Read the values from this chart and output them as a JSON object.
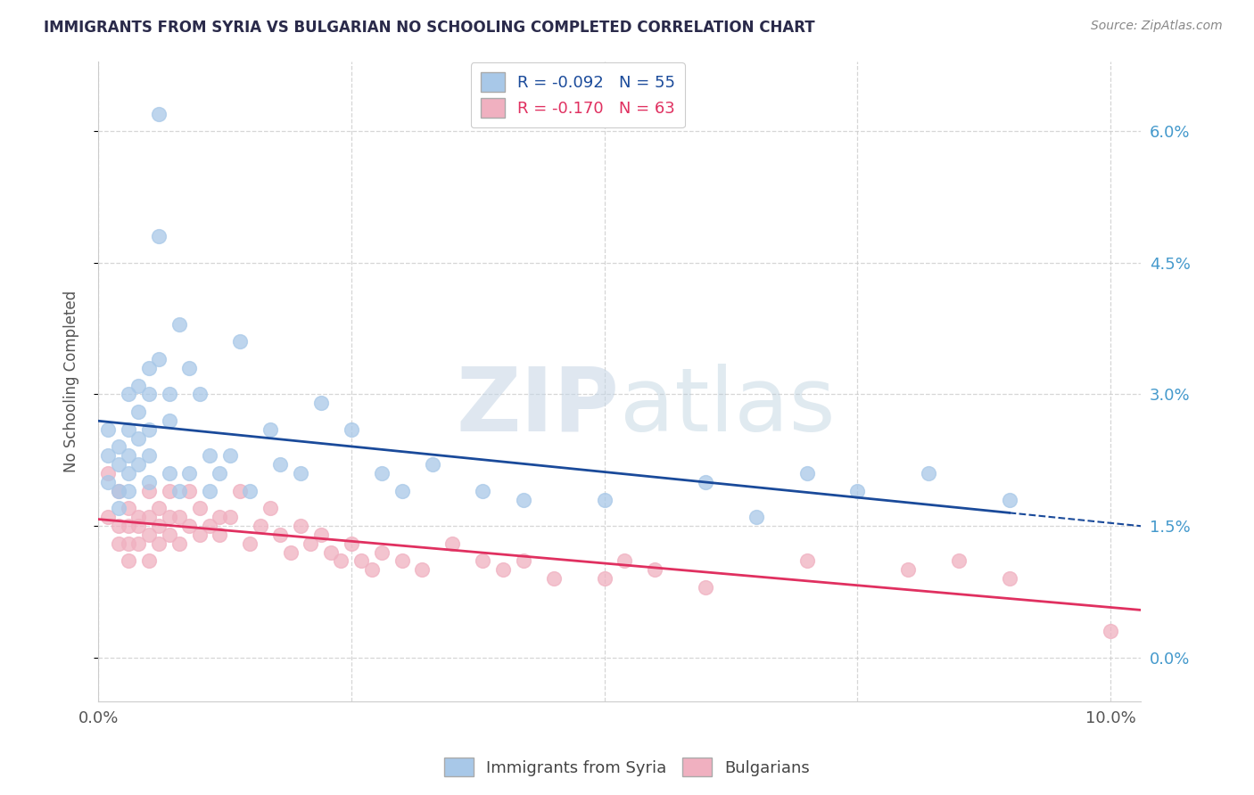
{
  "title": "IMMIGRANTS FROM SYRIA VS BULGARIAN NO SCHOOLING COMPLETED CORRELATION CHART",
  "source": "Source: ZipAtlas.com",
  "ylabel": "No Schooling Completed",
  "legend_labels": [
    "Immigrants from Syria",
    "Bulgarians"
  ],
  "r_values": [
    -0.092,
    -0.17
  ],
  "n_values": [
    55,
    63
  ],
  "blue_color": "#a8c8e8",
  "pink_color": "#f0b0c0",
  "blue_line_color": "#1a4a9a",
  "pink_line_color": "#e03060",
  "background_color": "#ffffff",
  "grid_color": "#cccccc",
  "title_color": "#2a2a4a",
  "source_color": "#888888",
  "right_axis_color": "#4499cc",
  "axis_label_color": "#555555",
  "xlim": [
    0.0,
    0.103
  ],
  "ylim": [
    -0.005,
    0.068
  ],
  "yticks": [
    0.0,
    0.015,
    0.03,
    0.045,
    0.06
  ],
  "ytick_labels": [
    "0.0%",
    "1.5%",
    "3.0%",
    "4.5%",
    "6.0%"
  ],
  "xticks": [
    0.0,
    0.025,
    0.05,
    0.075,
    0.1
  ],
  "xtick_labels": [
    "0.0%",
    "",
    "",
    "",
    "10.0%"
  ],
  "syria_x": [
    0.001,
    0.001,
    0.001,
    0.002,
    0.002,
    0.002,
    0.002,
    0.003,
    0.003,
    0.003,
    0.003,
    0.003,
    0.004,
    0.004,
    0.004,
    0.004,
    0.005,
    0.005,
    0.005,
    0.005,
    0.005,
    0.006,
    0.006,
    0.006,
    0.007,
    0.007,
    0.007,
    0.008,
    0.008,
    0.009,
    0.009,
    0.01,
    0.011,
    0.011,
    0.012,
    0.013,
    0.014,
    0.015,
    0.017,
    0.018,
    0.02,
    0.022,
    0.025,
    0.028,
    0.03,
    0.033,
    0.038,
    0.042,
    0.05,
    0.06,
    0.065,
    0.07,
    0.075,
    0.082,
    0.09
  ],
  "syria_y": [
    0.026,
    0.023,
    0.02,
    0.024,
    0.022,
    0.019,
    0.017,
    0.03,
    0.026,
    0.023,
    0.021,
    0.019,
    0.031,
    0.028,
    0.025,
    0.022,
    0.033,
    0.03,
    0.026,
    0.023,
    0.02,
    0.062,
    0.048,
    0.034,
    0.03,
    0.027,
    0.021,
    0.038,
    0.019,
    0.033,
    0.021,
    0.03,
    0.023,
    0.019,
    0.021,
    0.023,
    0.036,
    0.019,
    0.026,
    0.022,
    0.021,
    0.029,
    0.026,
    0.021,
    0.019,
    0.022,
    0.019,
    0.018,
    0.018,
    0.02,
    0.016,
    0.021,
    0.019,
    0.021,
    0.018
  ],
  "bulg_x": [
    0.001,
    0.001,
    0.002,
    0.002,
    0.002,
    0.003,
    0.003,
    0.003,
    0.003,
    0.004,
    0.004,
    0.004,
    0.005,
    0.005,
    0.005,
    0.005,
    0.006,
    0.006,
    0.006,
    0.007,
    0.007,
    0.007,
    0.008,
    0.008,
    0.009,
    0.009,
    0.01,
    0.01,
    0.011,
    0.012,
    0.012,
    0.013,
    0.014,
    0.015,
    0.016,
    0.017,
    0.018,
    0.019,
    0.02,
    0.021,
    0.022,
    0.023,
    0.024,
    0.025,
    0.026,
    0.027,
    0.028,
    0.03,
    0.032,
    0.035,
    0.038,
    0.04,
    0.042,
    0.045,
    0.05,
    0.052,
    0.055,
    0.06,
    0.07,
    0.08,
    0.085,
    0.09,
    0.1
  ],
  "bulg_y": [
    0.021,
    0.016,
    0.019,
    0.015,
    0.013,
    0.017,
    0.015,
    0.013,
    0.011,
    0.016,
    0.015,
    0.013,
    0.019,
    0.016,
    0.014,
    0.011,
    0.017,
    0.015,
    0.013,
    0.019,
    0.016,
    0.014,
    0.016,
    0.013,
    0.019,
    0.015,
    0.017,
    0.014,
    0.015,
    0.016,
    0.014,
    0.016,
    0.019,
    0.013,
    0.015,
    0.017,
    0.014,
    0.012,
    0.015,
    0.013,
    0.014,
    0.012,
    0.011,
    0.013,
    0.011,
    0.01,
    0.012,
    0.011,
    0.01,
    0.013,
    0.011,
    0.01,
    0.011,
    0.009,
    0.009,
    0.011,
    0.01,
    0.008,
    0.011,
    0.01,
    0.011,
    0.009,
    0.003
  ]
}
